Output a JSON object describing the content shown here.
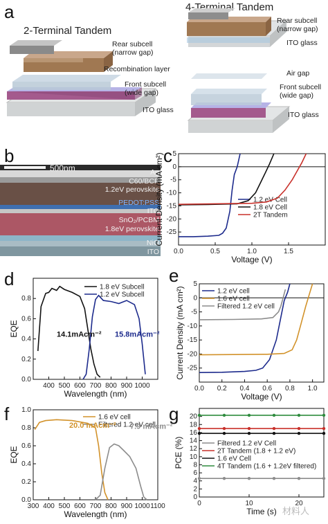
{
  "panel_a": {
    "label": "a",
    "left_title": "2-Terminal Tandem",
    "right_title": "4-Terminal Tandem",
    "left_layers": {
      "rear": [
        "Rear subcell",
        "(narrow gap)"
      ],
      "recomb": "Recombination layer",
      "front": [
        "Front subcell",
        "(wide gap)"
      ],
      "ito": "ITO glass"
    },
    "right_layers": {
      "rear": [
        "Rear subcell",
        "(narrow gap)"
      ],
      "ito_top": "ITO glass",
      "air": "Air gap",
      "front": [
        "Front subcell",
        "(wide gap)"
      ],
      "ito": "ITO glass"
    }
  },
  "panel_b": {
    "label": "b",
    "scale_bar": "500nm",
    "layers": [
      "Ag",
      "C60/BCP",
      "1.2eV perovskite",
      "PEDOT:PSS",
      "ITO",
      "SnO₂/PCBM",
      "1.8eV perovskite",
      "NiO",
      "ITO"
    ]
  },
  "chart_data": [
    {
      "id": "c",
      "type": "line",
      "xlabel": "Voltage (V)",
      "ylabel": "Current Density (mA cm²)",
      "xlim": [
        0,
        2.0
      ],
      "ylim": [
        -30,
        5
      ],
      "xticks": [
        0.0,
        0.5,
        1.0,
        1.5
      ],
      "yticks": [
        5,
        0,
        -5,
        -10,
        -15,
        -20,
        -25
      ],
      "series": [
        {
          "name": "1.2 eV Cell",
          "color": "#1c2a8c",
          "x": [
            0,
            0.2,
            0.4,
            0.55,
            0.6,
            0.65,
            0.7,
            0.73,
            0.76,
            0.8,
            0.84
          ],
          "y": [
            -26.8,
            -26.8,
            -26.6,
            -26.3,
            -25.5,
            -23.5,
            -17,
            -9,
            -3,
            0,
            5
          ]
        },
        {
          "name": "1.8 eV Cell",
          "color": "#111111",
          "x": [
            0,
            0.4,
            0.8,
            0.95,
            1.05,
            1.12,
            1.18,
            1.24,
            1.3
          ],
          "y": [
            -14.6,
            -14.5,
            -14.2,
            -13,
            -10,
            -6,
            -2.5,
            1,
            5
          ]
        },
        {
          "name": "2T Tandem",
          "color": "#c8302a",
          "x": [
            0,
            0.5,
            1.0,
            1.2,
            1.35,
            1.45,
            1.55,
            1.62,
            1.68,
            1.74
          ],
          "y": [
            -14.4,
            -14.2,
            -14.0,
            -13.5,
            -12,
            -9,
            -5,
            -1.5,
            1.5,
            5
          ]
        }
      ]
    },
    {
      "id": "d",
      "type": "line",
      "xlabel": "Wavelength (nm)",
      "ylabel": "EQE",
      "xlim": [
        300,
        1100
      ],
      "ylim": [
        0,
        1.0
      ],
      "xticks": [
        400,
        500,
        600,
        700,
        800,
        900,
        1000
      ],
      "yticks": [
        0.0,
        0.2,
        0.4,
        0.6,
        0.8
      ],
      "annotations": [
        {
          "text": "14.1mAcm⁻²",
          "color": "#111111"
        },
        {
          "text": "15.8mAcm⁻²",
          "color": "#1c2a8c"
        }
      ],
      "series": [
        {
          "name": "1.8 eV Subcell",
          "color": "#111111",
          "x": [
            330,
            350,
            380,
            400,
            420,
            450,
            470,
            500,
            550,
            600,
            630,
            650,
            670,
            690,
            710,
            730
          ],
          "y": [
            0.28,
            0.72,
            0.85,
            0.86,
            0.9,
            0.88,
            0.92,
            0.89,
            0.86,
            0.82,
            0.7,
            0.5,
            0.3,
            0.15,
            0.05,
            0.02
          ]
        },
        {
          "name": "1.2 eV Subcell",
          "color": "#1c2a8c",
          "x": [
            620,
            640,
            660,
            680,
            700,
            720,
            750,
            800,
            850,
            900,
            950,
            980,
            1000,
            1020
          ],
          "y": [
            0.0,
            0.05,
            0.3,
            0.62,
            0.79,
            0.83,
            0.78,
            0.77,
            0.75,
            0.78,
            0.74,
            0.6,
            0.35,
            0.05
          ]
        }
      ]
    },
    {
      "id": "e",
      "type": "line",
      "xlabel": "Voltage (V)",
      "ylabel": "Current Density (mA cm²)",
      "xlim": [
        0,
        1.1
      ],
      "ylim": [
        -30,
        5
      ],
      "xticks": [
        0.0,
        0.2,
        0.4,
        0.6,
        0.8,
        1.0
      ],
      "yticks": [
        5,
        0,
        -5,
        -10,
        -15,
        -20,
        -25
      ],
      "series": [
        {
          "name": "1.2 eV cell",
          "color": "#1c2a8c",
          "x": [
            0,
            0.2,
            0.4,
            0.5,
            0.56,
            0.62,
            0.68,
            0.72,
            0.75,
            0.78,
            0.8
          ],
          "y": [
            -26.6,
            -26.5,
            -26.2,
            -25.8,
            -25,
            -22,
            -15,
            -7,
            -1,
            2,
            5
          ]
        },
        {
          "name": "1.6 eV cell",
          "color": "#d2922a",
          "x": [
            0,
            0.3,
            0.6,
            0.75,
            0.82,
            0.86,
            0.9,
            0.94,
            0.97,
            1.0
          ],
          "y": [
            -20.3,
            -20.2,
            -20.1,
            -19.8,
            -18.5,
            -15,
            -9,
            -3,
            1,
            5
          ]
        },
        {
          "name": "Filtered 1.2 eV cell",
          "color": "#8c8c8c",
          "x": [
            0,
            0.3,
            0.55,
            0.65,
            0.7,
            0.72,
            0.74,
            0.76
          ],
          "y": [
            -7.8,
            -7.7,
            -7.5,
            -7,
            -5,
            -3,
            0,
            3
          ]
        }
      ]
    },
    {
      "id": "f",
      "type": "line",
      "xlabel": "Wavelength (nm)",
      "ylabel": "EQE",
      "xlim": [
        300,
        1100
      ],
      "ylim": [
        0,
        1.0
      ],
      "xticks": [
        300,
        400,
        500,
        600,
        700,
        800,
        900,
        1000,
        1100
      ],
      "yticks": [
        0.0,
        0.2,
        0.4,
        0.6,
        0.8,
        1.0
      ],
      "annotations": [
        {
          "text": "20.0 mAcm⁻²",
          "color": "#d2922a"
        },
        {
          "text": "7.9 mAcm⁻²",
          "color": "#8c8c8c"
        }
      ],
      "series": [
        {
          "name": "1.6 eV cell",
          "color": "#d2922a",
          "x": [
            310,
            340,
            380,
            450,
            550,
            650,
            700,
            720,
            740,
            760,
            780
          ],
          "y": [
            0.78,
            0.86,
            0.88,
            0.89,
            0.88,
            0.85,
            0.8,
            0.6,
            0.3,
            0.08,
            0.0
          ]
        },
        {
          "name": "Filtered 1.2 eV cell",
          "color": "#8c8c8c",
          "x": [
            700,
            730,
            760,
            790,
            820,
            850,
            880,
            920,
            960,
            990,
            1010,
            1030
          ],
          "y": [
            0.0,
            0.05,
            0.35,
            0.58,
            0.62,
            0.6,
            0.55,
            0.48,
            0.35,
            0.15,
            0.03,
            0.0
          ]
        }
      ]
    },
    {
      "id": "g",
      "type": "line",
      "xlabel": "Time (s)",
      "ylabel": "PCE (%)",
      "xlim": [
        0,
        25
      ],
      "ylim": [
        0,
        22
      ],
      "xticks": [
        0,
        10,
        20
      ],
      "yticks": [
        0,
        2,
        4,
        6,
        8,
        10,
        12,
        14,
        16,
        18,
        20
      ],
      "series": [
        {
          "name": "Filtered 1.2 eV Cell",
          "color": "#8c8c8c",
          "x": [
            0,
            5,
            10,
            15,
            20,
            25
          ],
          "y": [
            4.6,
            4.6,
            4.6,
            4.6,
            4.6,
            4.6
          ]
        },
        {
          "name": "2T Tandem (1.8 + 1.2 eV)",
          "color": "#c8302a",
          "x": [
            0,
            5,
            10,
            15,
            20,
            25
          ],
          "y": [
            17.0,
            17.0,
            17.0,
            17.0,
            17.0,
            17.0
          ]
        },
        {
          "name": "1.6 eV Cell",
          "color": "#111111",
          "x": [
            0,
            5,
            10,
            15,
            20,
            25
          ],
          "y": [
            15.8,
            15.8,
            15.8,
            15.8,
            15.8,
            15.8
          ]
        },
        {
          "name": "4T Tandem (1.6 + 1.2eV filtered)",
          "color": "#2e8b3d",
          "x": [
            0,
            5,
            10,
            15,
            20,
            25
          ],
          "y": [
            20.3,
            20.3,
            20.3,
            20.3,
            20.3,
            20.3
          ]
        }
      ]
    }
  ],
  "watermark": "材料人"
}
